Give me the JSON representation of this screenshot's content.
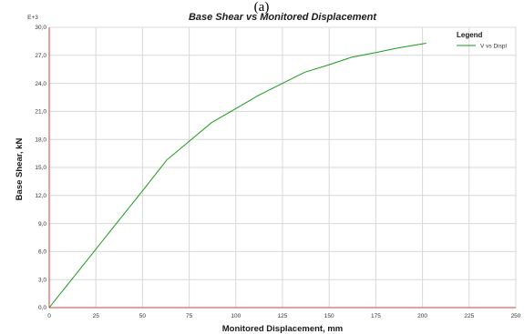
{
  "panel_label": "(a)",
  "chart_data": {
    "type": "line",
    "title": "Base Shear vs Monitored Displacement",
    "xlabel": "Monitored Displacement, mm",
    "ylabel": "Base Shear, kN",
    "y_multiplier": "E+3",
    "xlim": [
      0,
      250
    ],
    "ylim": [
      0,
      30
    ],
    "x_ticks": [
      "0",
      "25",
      "50",
      "75",
      "100",
      "125",
      "150",
      "175",
      "200",
      "225",
      "250"
    ],
    "y_ticks": [
      "0,0",
      "3,0",
      "6,0",
      "9,0",
      "12,0",
      "15,0",
      "18,0",
      "21,0",
      "24,0",
      "27,0",
      "30,0"
    ],
    "grid": true,
    "legend_title": "Legend",
    "legend_position": "top-right",
    "series": [
      {
        "name": "V vs Displ",
        "color": "#1a9a1a",
        "x": [
          0,
          10,
          20,
          30,
          40,
          50,
          63,
          75,
          87,
          100,
          112,
          125,
          137,
          150,
          162,
          175,
          187,
          202
        ],
        "y": [
          0,
          2.5,
          5.0,
          7.5,
          10.0,
          12.5,
          15.8,
          17.8,
          19.8,
          21.3,
          22.7,
          24.0,
          25.2,
          26.0,
          26.8,
          27.3,
          27.8,
          28.3
        ]
      }
    ]
  }
}
